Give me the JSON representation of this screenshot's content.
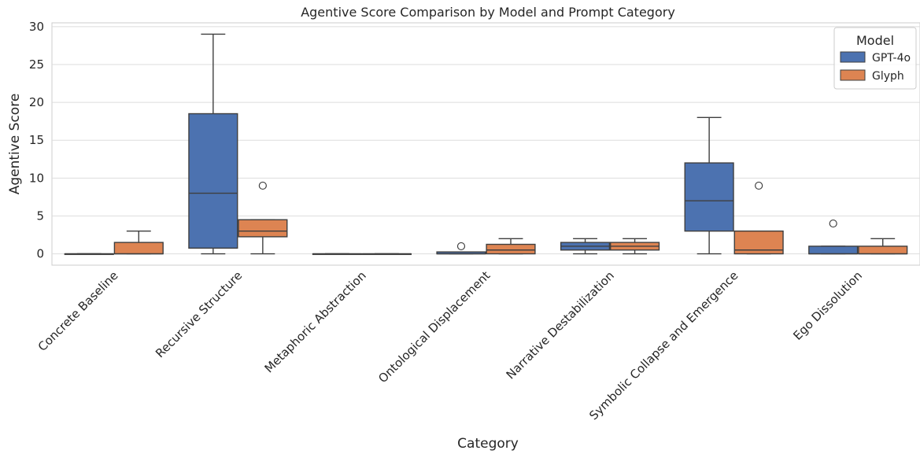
{
  "chart_data": {
    "type": "box",
    "title": "Agentive Score Comparison by Model and Prompt Category",
    "xlabel": "Category",
    "ylabel": "Agentive Score",
    "ylim": [
      -1.5,
      30.5
    ],
    "yticks": [
      0,
      5,
      10,
      15,
      20,
      25,
      30
    ],
    "grid": true,
    "legend": {
      "title": "Model",
      "placement": "top-right"
    },
    "categories": [
      "Concrete Baseline",
      "Recursive Structure",
      "Metaphoric Abstraction",
      "Ontological Displacement",
      "Narrative Destabilization",
      "Symbolic Collapse and Emergence",
      "Ego Dissolution"
    ],
    "series": [
      {
        "name": "GPT-4o",
        "color": "#4c72b0",
        "boxes": [
          {
            "whislo": 0,
            "q1": 0,
            "med": 0,
            "q3": 0,
            "whishi": 0,
            "fliers": []
          },
          {
            "whislo": 0,
            "q1": 0.75,
            "med": 8,
            "q3": 18.5,
            "whishi": 29,
            "fliers": []
          },
          {
            "whislo": 0,
            "q1": 0,
            "med": 0,
            "q3": 0,
            "whishi": 0,
            "fliers": []
          },
          {
            "whislo": 0,
            "q1": 0,
            "med": 0,
            "q3": 0.25,
            "whishi": 0.25,
            "fliers": [
              1
            ]
          },
          {
            "whislo": 0,
            "q1": 0.5,
            "med": 1,
            "q3": 1.5,
            "whishi": 2,
            "fliers": []
          },
          {
            "whislo": 0,
            "q1": 3,
            "med": 7,
            "q3": 12,
            "whishi": 18,
            "fliers": []
          },
          {
            "whislo": 0,
            "q1": 0,
            "med": 0,
            "q3": 1,
            "whishi": 1,
            "fliers": [
              4
            ]
          }
        ]
      },
      {
        "name": "Glyph",
        "color": "#dd8452",
        "boxes": [
          {
            "whislo": 0,
            "q1": 0,
            "med": 0,
            "q3": 1.5,
            "whishi": 3,
            "fliers": []
          },
          {
            "whislo": 0,
            "q1": 2.25,
            "med": 3,
            "q3": 4.5,
            "whishi": 4.5,
            "fliers": [
              9
            ]
          },
          {
            "whislo": 0,
            "q1": 0,
            "med": 0,
            "q3": 0,
            "whishi": 0,
            "fliers": []
          },
          {
            "whislo": 0,
            "q1": 0,
            "med": 0.5,
            "q3": 1.25,
            "whishi": 2,
            "fliers": []
          },
          {
            "whislo": 0,
            "q1": 0.5,
            "med": 1,
            "q3": 1.5,
            "whishi": 2,
            "fliers": []
          },
          {
            "whislo": 0,
            "q1": 0,
            "med": 0.5,
            "q3": 3,
            "whishi": 3,
            "fliers": [
              9
            ]
          },
          {
            "whislo": 0,
            "q1": 0,
            "med": 0,
            "q3": 1,
            "whishi": 2,
            "fliers": []
          }
        ]
      }
    ]
  }
}
